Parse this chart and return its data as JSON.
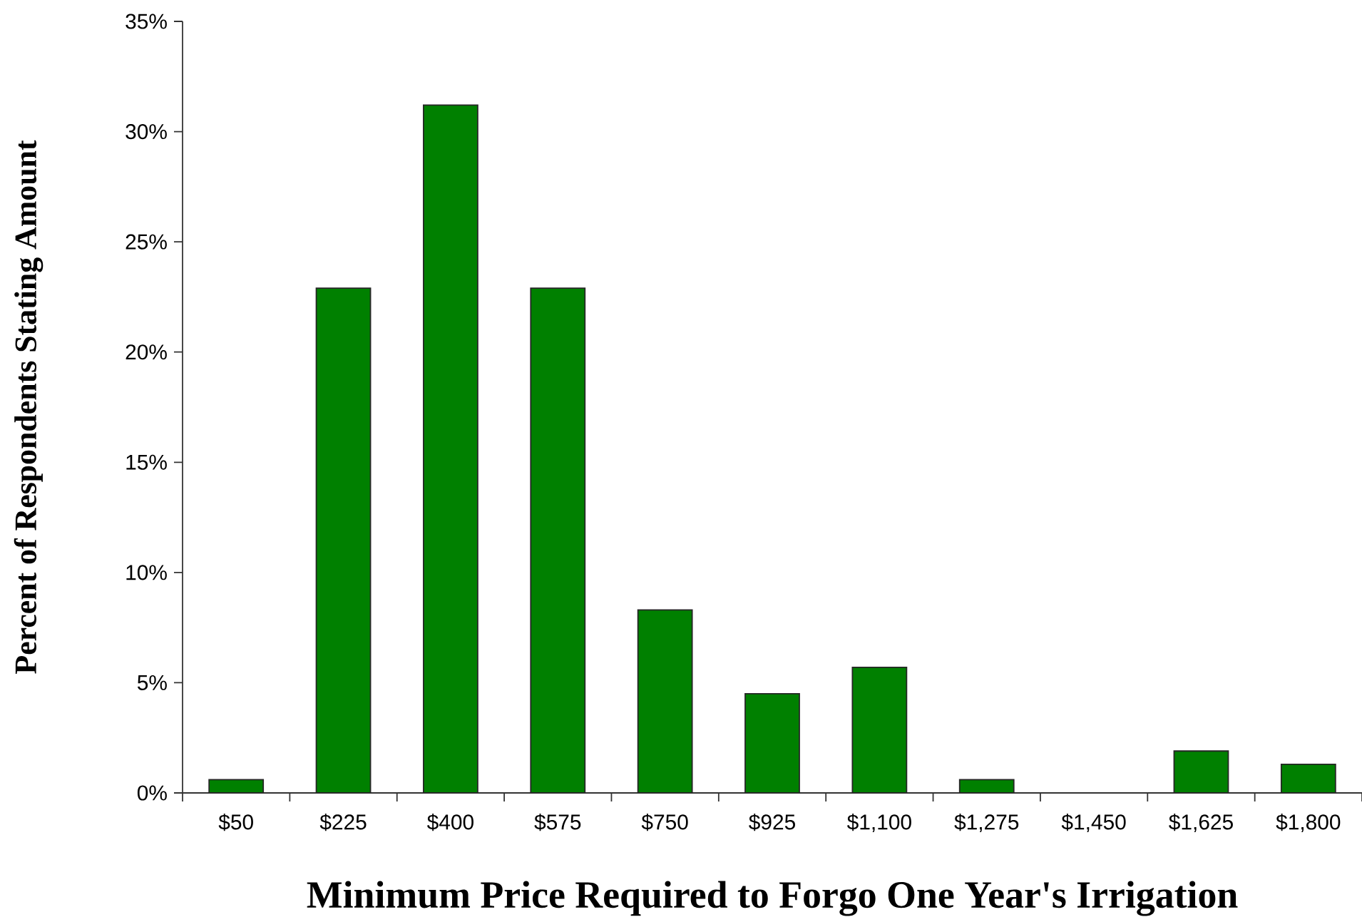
{
  "chart_data": {
    "type": "bar",
    "xlabel": "Minimum Price Required to Forgo One Year's Irrigation",
    "ylabel": "Percent of Respondents Stating Amount",
    "categories": [
      "$50",
      "$225",
      "$400",
      "$575",
      "$750",
      "$925",
      "$1,100",
      "$1,275",
      "$1,450",
      "$1,625",
      "$1,800"
    ],
    "values": [
      0.6,
      22.9,
      31.2,
      22.9,
      8.3,
      4.5,
      5.7,
      0.6,
      0,
      1.9,
      1.3
    ],
    "color": "#008000",
    "ylim": [
      0,
      35
    ],
    "yticks": [
      {
        "value": 0,
        "label": "0%"
      },
      {
        "value": 5,
        "label": "5%"
      },
      {
        "value": 10,
        "label": "10%"
      },
      {
        "value": 15,
        "label": "15%"
      },
      {
        "value": 20,
        "label": "20%"
      },
      {
        "value": 25,
        "label": "25%"
      },
      {
        "value": 30,
        "label": "30%"
      },
      {
        "value": 35,
        "label": "35%"
      }
    ]
  }
}
